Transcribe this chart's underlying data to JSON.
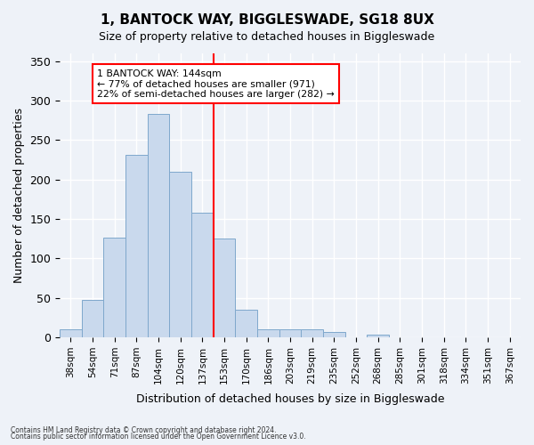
{
  "title": "1, BANTOCK WAY, BIGGLESWADE, SG18 8UX",
  "subtitle": "Size of property relative to detached houses in Biggleswade",
  "xlabel": "Distribution of detached houses by size in Biggleswade",
  "ylabel": "Number of detached properties",
  "bin_labels": [
    "38sqm",
    "54sqm",
    "71sqm",
    "87sqm",
    "104sqm",
    "120sqm",
    "137sqm",
    "153sqm",
    "170sqm",
    "186sqm",
    "203sqm",
    "219sqm",
    "235sqm",
    "252sqm",
    "268sqm",
    "285sqm",
    "301sqm",
    "318sqm",
    "334sqm",
    "351sqm",
    "367sqm"
  ],
  "bar_heights": [
    10,
    47,
    126,
    231,
    283,
    210,
    158,
    125,
    35,
    10,
    10,
    10,
    7,
    0,
    3,
    0,
    0,
    0,
    0,
    0,
    0
  ],
  "bar_color": "#c9d9ed",
  "bar_edge_color": "#7fa8cc",
  "vline_pos": 6.5,
  "vline_color": "red",
  "annotation_text": "1 BANTOCK WAY: 144sqm\n← 77% of detached houses are smaller (971)\n22% of semi-detached houses are larger (282) →",
  "annotation_box_color": "white",
  "annotation_box_edgecolor": "red",
  "ylim": [
    0,
    360
  ],
  "yticks": [
    0,
    50,
    100,
    150,
    200,
    250,
    300,
    350
  ],
  "footer1": "Contains HM Land Registry data © Crown copyright and database right 2024.",
  "footer2": "Contains public sector information licensed under the Open Government Licence v3.0.",
  "bg_color": "#eef2f8",
  "grid_color": "white"
}
